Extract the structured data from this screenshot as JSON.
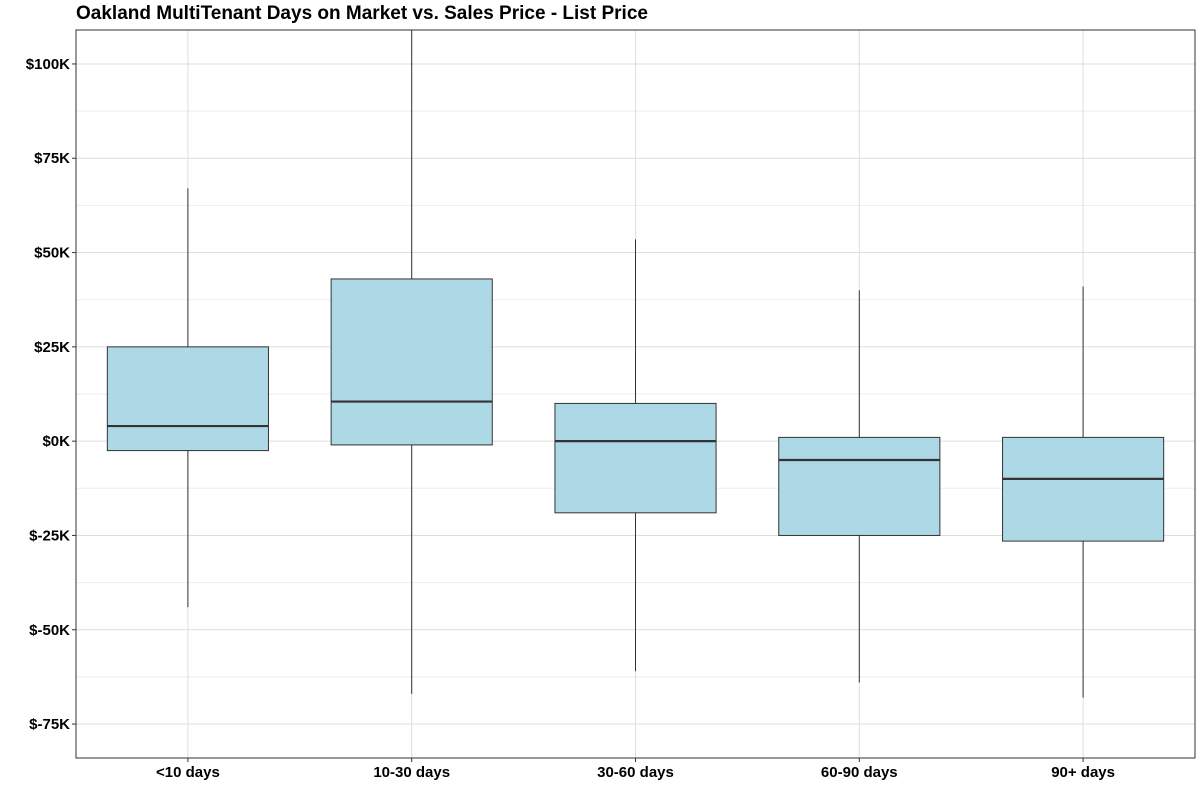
{
  "chart_data": {
    "type": "box",
    "title": "Oakland MultiTenant Days on Market vs. Sales Price - List Price",
    "xlabel": "",
    "ylabel": "",
    "categories": [
      "<10 days",
      "10-30 days",
      "30-60 days",
      "60-90 days",
      "90+ days"
    ],
    "y_ticks": [
      100000,
      75000,
      50000,
      25000,
      0,
      -25000,
      -50000,
      -75000
    ],
    "y_tick_labels": [
      "$100K",
      "$75K",
      "$50K",
      "$25K",
      "$0K",
      "$-25K",
      "$-50K",
      "$-75K"
    ],
    "ylim": [
      -84000,
      109000
    ],
    "grid": true,
    "box_fill_color": "#add8e6",
    "box_stroke_color": "#333333",
    "boxes": [
      {
        "category": "<10 days",
        "whisker_low": -44000,
        "q1": -2500,
        "median": 4000,
        "q3": 25000,
        "whisker_high": 67000
      },
      {
        "category": "10-30 days",
        "whisker_low": -67000,
        "q1": -1000,
        "median": 10500,
        "q3": 43000,
        "whisker_high": 109000
      },
      {
        "category": "30-60 days",
        "whisker_low": -61000,
        "q1": -19000,
        "median": 0,
        "q3": 10000,
        "whisker_high": 53500
      },
      {
        "category": "60-90 days",
        "whisker_low": -64000,
        "q1": -25000,
        "median": -5000,
        "q3": 1000,
        "whisker_high": 40000
      },
      {
        "category": "90+ days",
        "whisker_low": -68000,
        "q1": -26500,
        "median": -10000,
        "q3": 1000,
        "whisker_high": 41000
      }
    ]
  }
}
